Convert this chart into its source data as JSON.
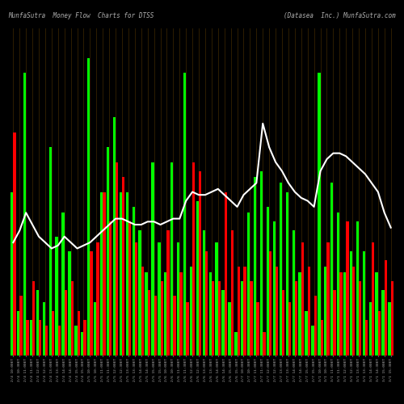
{
  "title_left": "MunfaSutra  Money Flow  Charts for DTSS",
  "title_right": "(Datasea  Inc.) MunfaSutra.com",
  "background_color": "#000000",
  "categories": [
    "2/4 10:00ET",
    "2/4 10:30ET",
    "2/4 11:00ET",
    "2/4 11:30ET",
    "2/4 12:00ET",
    "2/4 12:30ET",
    "2/4 13:00ET",
    "2/4 13:30ET",
    "2/4 14:00ET",
    "2/4 14:30ET",
    "2/4 15:00ET",
    "2/4 15:30ET",
    "2/5 10:00ET",
    "2/5 10:30ET",
    "2/5 11:00ET",
    "2/5 11:30ET",
    "2/5 12:00ET",
    "2/5 12:30ET",
    "2/5 13:00ET",
    "2/5 13:30ET",
    "2/5 14:00ET",
    "2/5 14:30ET",
    "2/5 15:00ET",
    "2/5 15:30ET",
    "2/6 10:00ET",
    "2/6 10:30ET",
    "2/6 11:00ET",
    "2/6 11:30ET",
    "2/6 12:00ET",
    "2/6 12:30ET",
    "2/6 13:00ET",
    "2/6 13:30ET",
    "2/6 14:00ET",
    "2/6 14:30ET",
    "2/6 15:00ET",
    "2/6 15:30ET",
    "2/7 10:00ET",
    "2/7 10:30ET",
    "2/7 11:00ET",
    "2/7 11:30ET",
    "2/7 12:00ET",
    "2/7 12:30ET",
    "2/7 13:00ET",
    "2/7 13:30ET",
    "2/7 14:00ET",
    "2/7 14:30ET",
    "2/7 15:00ET",
    "2/7 15:30ET",
    "3/1 10:00ET",
    "3/1 10:30ET",
    "3/1 11:00ET",
    "3/1 11:30ET",
    "3/1 12:00ET",
    "3/1 12:30ET",
    "3/1 13:00ET",
    "3/1 13:30ET",
    "3/1 14:00ET",
    "3/1 14:30ET",
    "3/1 15:00ET",
    "3/1 15:30ET"
  ],
  "inflow": [
    55,
    15,
    95,
    12,
    22,
    18,
    70,
    40,
    48,
    35,
    10,
    8,
    100,
    18,
    55,
    70,
    80,
    55,
    55,
    50,
    42,
    28,
    65,
    38,
    28,
    65,
    38,
    95,
    30,
    52,
    42,
    28,
    38,
    22,
    18,
    8,
    25,
    48,
    60,
    62,
    50,
    45,
    58,
    55,
    42,
    28,
    15,
    10,
    95,
    30,
    58,
    48,
    28,
    35,
    45,
    35,
    18,
    28,
    22,
    18
  ],
  "outflow": [
    75,
    20,
    12,
    25,
    12,
    10,
    15,
    10,
    22,
    25,
    15,
    12,
    35,
    38,
    55,
    45,
    65,
    60,
    45,
    38,
    30,
    22,
    20,
    25,
    42,
    20,
    28,
    18,
    65,
    62,
    35,
    25,
    25,
    55,
    42,
    30,
    30,
    25,
    18,
    8,
    35,
    30,
    22,
    18,
    25,
    38,
    30,
    20,
    12,
    38,
    22,
    28,
    45,
    30,
    25,
    12,
    38,
    15,
    32,
    25
  ],
  "line_values": [
    38,
    42,
    48,
    44,
    40,
    38,
    36,
    37,
    40,
    38,
    36,
    37,
    38,
    40,
    42,
    44,
    46,
    46,
    45,
    44,
    44,
    45,
    45,
    44,
    45,
    46,
    46,
    52,
    55,
    54,
    54,
    55,
    56,
    54,
    52,
    50,
    54,
    56,
    58,
    78,
    70,
    65,
    62,
    58,
    55,
    53,
    52,
    50,
    62,
    66,
    68,
    68,
    67,
    65,
    63,
    61,
    58,
    55,
    48,
    43
  ],
  "inflow_color": "#00ff00",
  "outflow_color": "#ff0000",
  "line_color": "#ffffff",
  "text_color": "#b0b0b0",
  "grid_color": "#5a3a00"
}
